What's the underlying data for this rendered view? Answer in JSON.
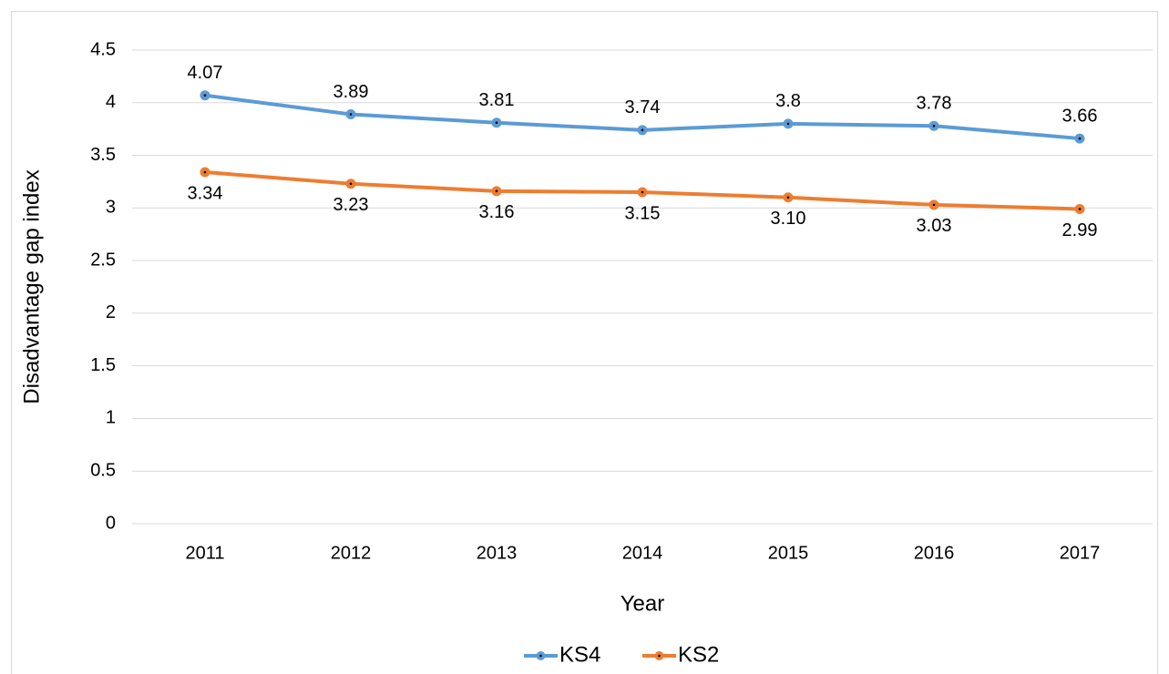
{
  "chart_data": {
    "type": "line",
    "x_label": "Year",
    "y_label": "Disadvantage gap index",
    "categories": [
      "2011",
      "2012",
      "2013",
      "2014",
      "2015",
      "2016",
      "2017"
    ],
    "series": [
      {
        "name": "KS4",
        "color": "#5b9bd5",
        "values": [
          4.07,
          3.89,
          3.81,
          3.74,
          3.8,
          3.78,
          3.66
        ]
      },
      {
        "name": "KS2",
        "color": "#ed7d31",
        "values": [
          3.34,
          3.23,
          3.16,
          3.15,
          3.1,
          3.03,
          2.99
        ],
        "value_labels": [
          "3.34",
          "3.23",
          "3.16",
          "3.15",
          "3.10",
          "3.03",
          "2.99"
        ]
      }
    ],
    "ylim": [
      0,
      4.5
    ],
    "yticks": [
      0,
      0.5,
      1,
      1.5,
      2,
      2.5,
      3,
      3.5,
      4,
      4.5
    ],
    "grid": true,
    "legend": "bottom"
  }
}
